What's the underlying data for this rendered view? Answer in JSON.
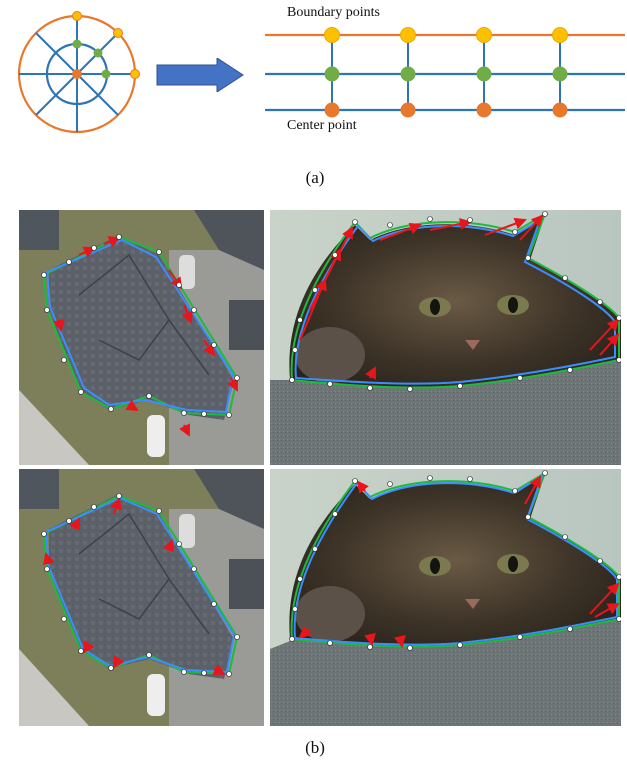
{
  "figure": {
    "part_a": {
      "caption": "(a)",
      "boundary_label": "Boundary points",
      "center_label": "Center point"
    },
    "part_b": {
      "caption": "(b)",
      "rows": [
        {
          "name": "row-top",
          "panels": [
            "building-aerial",
            "cat-photo"
          ]
        },
        {
          "name": "row-bottom",
          "panels": [
            "building-aerial",
            "cat-photo"
          ]
        }
      ]
    },
    "colors": {
      "orange": "#E8782B",
      "blue": "#2E75B6",
      "green": "#70AD47",
      "yellow": "#FFC000",
      "arrow_red": "#E8151B",
      "polygon_blue": "#3C8DFF",
      "polygon_green": "#1DBB3C"
    }
  }
}
